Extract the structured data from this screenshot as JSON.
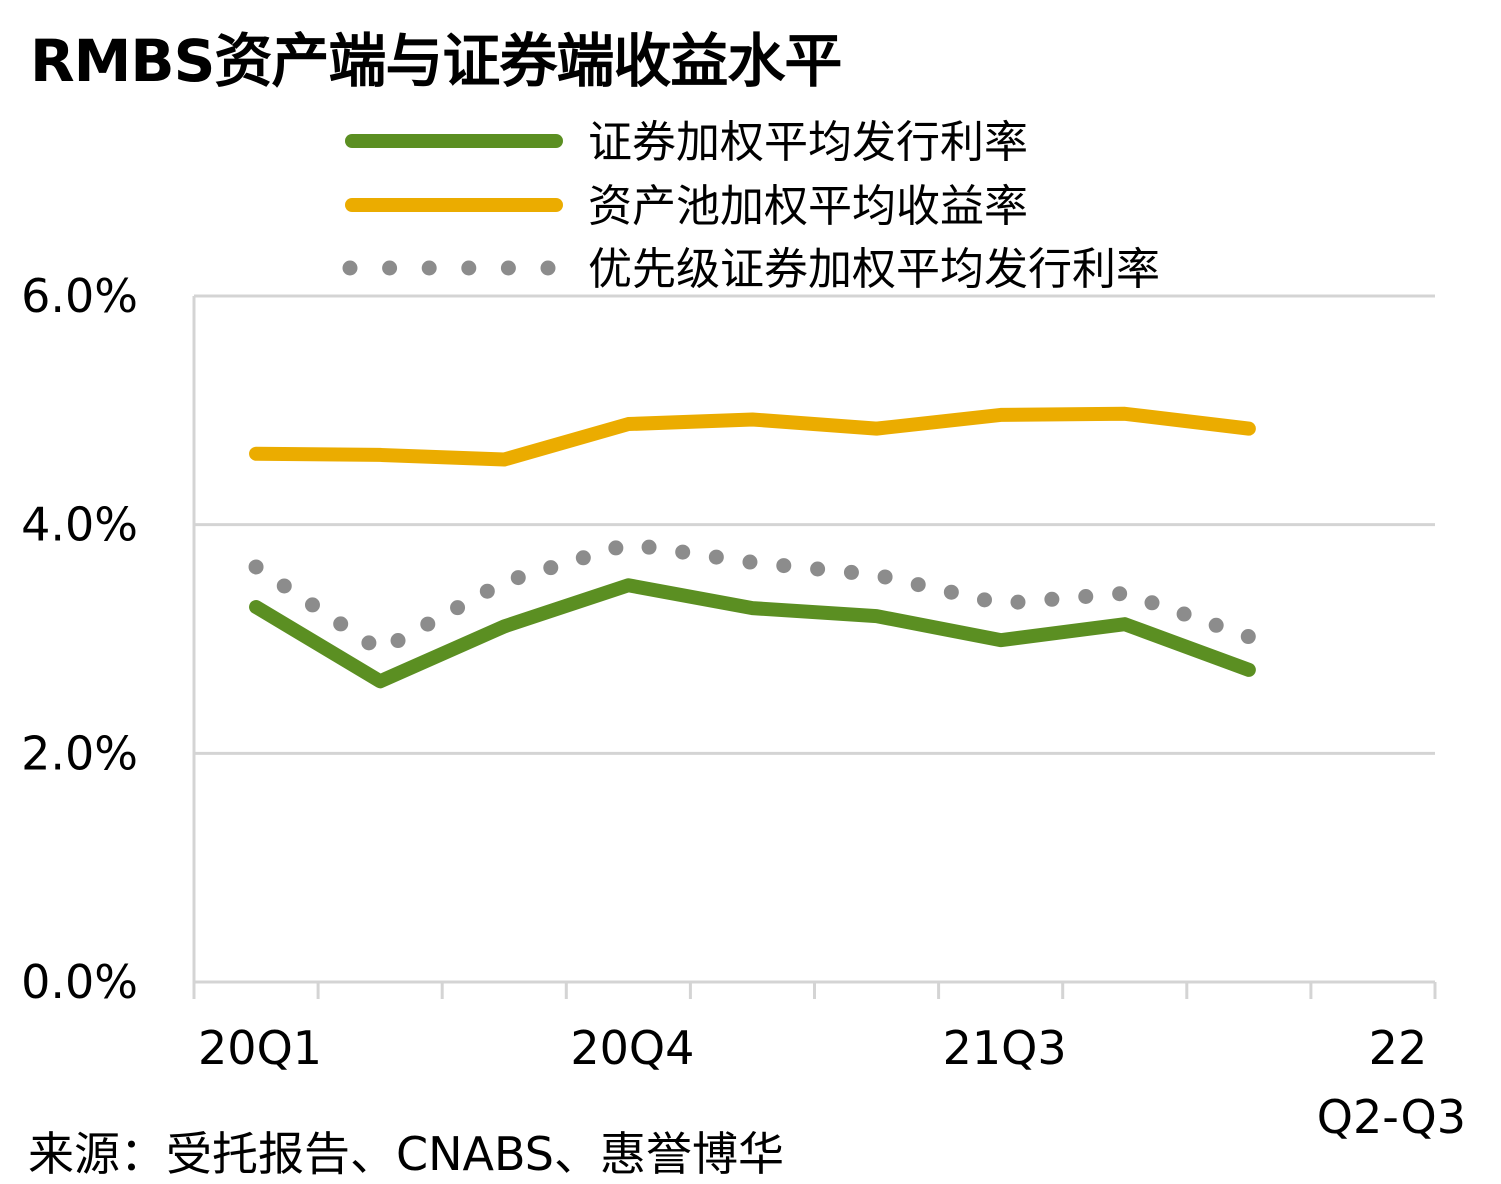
{
  "title": "RMBS资产端与证券端收益水平",
  "source": "来源：受托报告、CNABS、惠誉博华",
  "chart_data": {
    "type": "line",
    "x_labels": [
      "20Q1",
      "20Q4",
      "21Q3",
      "22",
      "Q2-Q3"
    ],
    "x_label_periods": [
      1,
      4,
      7,
      10
    ],
    "y_ticks": [
      "0.0%",
      "2.0%",
      "4.0%",
      "6.0%"
    ],
    "ylim": [
      0,
      6
    ],
    "series": [
      {
        "name": "证券加权平均发行利率",
        "style": "solid",
        "color": "#5b8f22",
        "x": [
          1,
          2,
          3,
          4,
          5,
          6,
          7,
          8,
          9
        ],
        "values": [
          3.28,
          2.63,
          3.11,
          3.47,
          3.27,
          3.2,
          2.99,
          3.13,
          2.73
        ]
      },
      {
        "name": "资产池加权平均收益率",
        "style": "solid",
        "color": "#ebac00",
        "x": [
          1,
          2,
          3,
          4,
          5,
          6,
          7,
          8,
          9
        ],
        "values": [
          4.62,
          4.61,
          4.57,
          4.88,
          4.92,
          4.84,
          4.96,
          4.97,
          4.84
        ]
      },
      {
        "name": "优先级证券加权平均发行利率",
        "style": "dotted",
        "color": "#8c8c8c",
        "x": [
          1,
          2,
          3,
          4,
          5,
          6,
          7,
          8,
          9
        ],
        "values": [
          3.63,
          2.9,
          3.5,
          3.83,
          3.67,
          3.56,
          3.31,
          3.4,
          3.02
        ]
      }
    ],
    "grid": true,
    "legend_position": "top-right"
  }
}
